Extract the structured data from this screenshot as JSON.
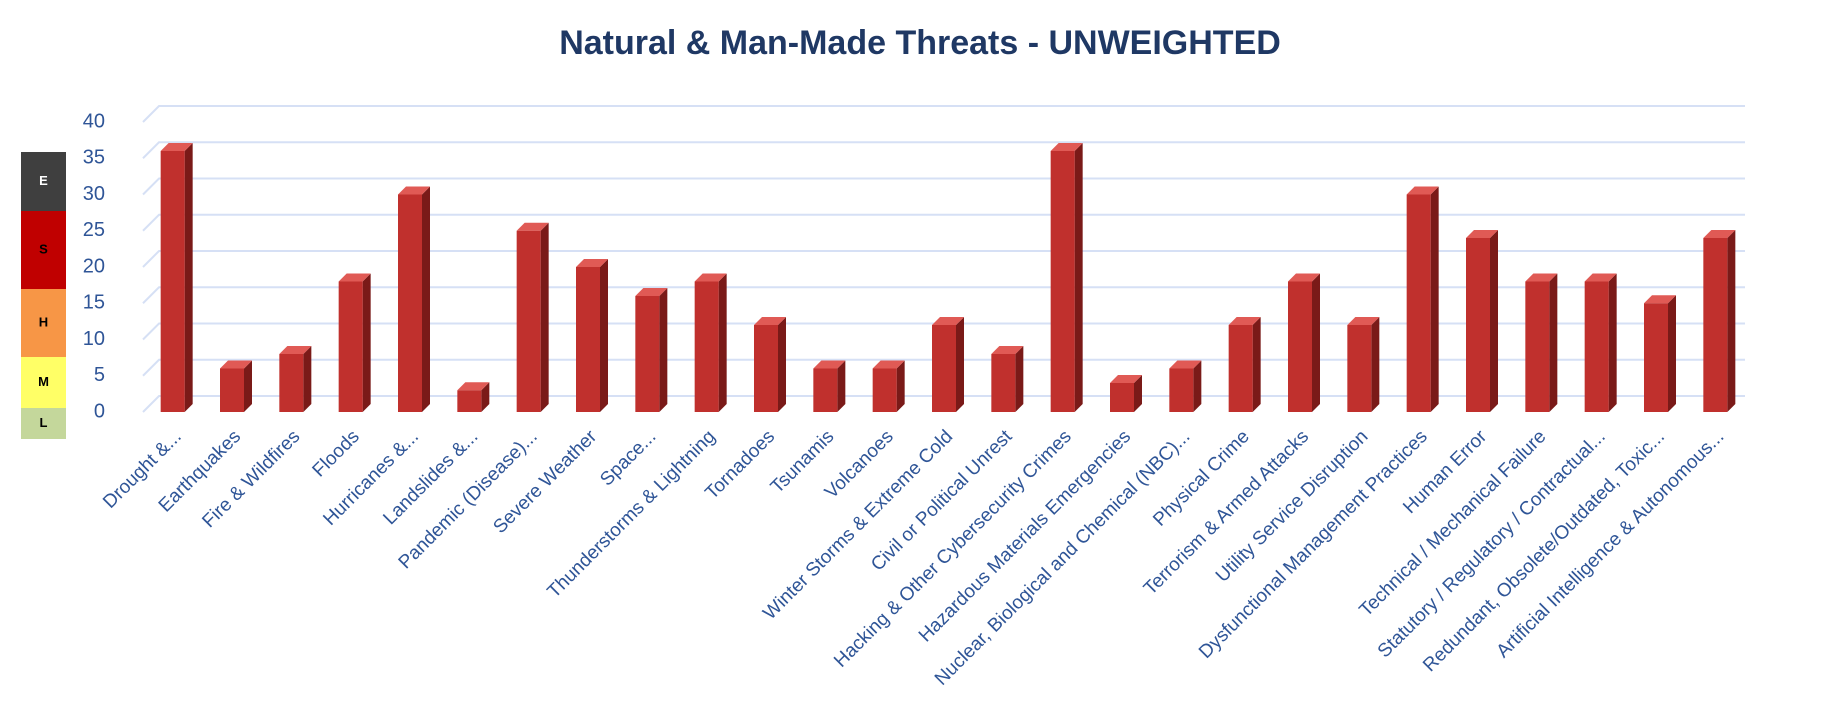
{
  "chart_data": {
    "type": "bar",
    "title": "Natural & Man-Made Threats - UNWEIGHTED",
    "categories": [
      "Drought &...",
      "Earthquakes",
      "Fire & Wildfires",
      "Floods",
      "Hurricanes &...",
      "Landslides &...",
      "Pandemic (Disease)...",
      "Severe Weather",
      "Space...",
      "Thunderstorms & Lightning",
      "Tornadoes",
      "Tsunamis",
      "Volcanoes",
      "Winter Storms & Extreme Cold",
      "Civil or Political Unrest",
      "Hacking & Other Cybersecurity Crimes",
      "Hazardous Materials Emergencies",
      "Nuclear, Biological and Chemical (NBC)...",
      "Physical Crime",
      "Terrorism & Armed Attacks",
      "Utility Service Disruption",
      "Dysfunctional Management Practices",
      "Human Error",
      "Technical / Mechanical Failure",
      "Statutory / Regulatory / Contractual...",
      "Redundant, Obsolete/Outdated, Toxic...",
      "Artificial Intelligence & Autonomous..."
    ],
    "values": [
      36,
      6,
      8,
      18,
      30,
      3,
      25,
      20,
      16,
      18,
      12,
      6,
      6,
      12,
      8,
      36,
      4,
      6,
      12,
      18,
      12,
      30,
      24,
      18,
      18,
      15,
      24
    ],
    "color": "#c0302d",
    "ylim": [
      0,
      40
    ],
    "yticks": [
      0,
      5,
      10,
      15,
      20,
      25,
      30,
      35,
      40
    ],
    "grid": true,
    "risk_bands": [
      {
        "label": "E",
        "color": "#3f3f3f"
      },
      {
        "label": "S",
        "color": "#c00000"
      },
      {
        "label": "H",
        "color": "#f79646"
      },
      {
        "label": "M",
        "color": "#ffff66"
      },
      {
        "label": "L",
        "color": "#c4d79b"
      }
    ]
  }
}
